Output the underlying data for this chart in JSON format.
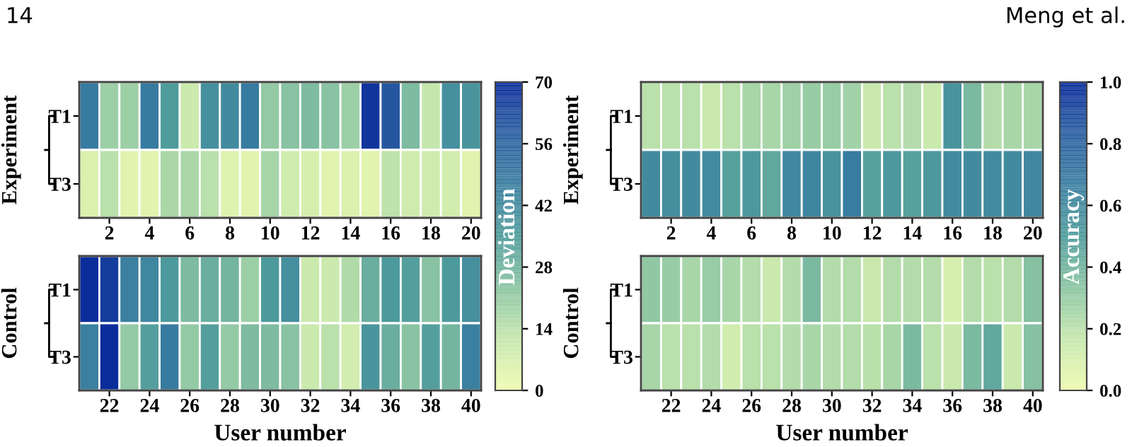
{
  "chart_data": [
    {
      "type": "heatmap",
      "ylabel": "Experiment",
      "annotations": [
        "14",
        "Meng et al."
      ],
      "categories": [
        null,
        "2",
        null,
        "4",
        null,
        "6",
        null,
        "8",
        null,
        "10",
        null,
        "12",
        null,
        "14",
        null,
        "16",
        null,
        "18",
        null,
        "20"
      ],
      "y_categories": [
        "T1",
        "T3"
      ],
      "cells": [
        [
          48,
          20,
          20,
          48,
          35,
          10,
          40,
          42,
          48,
          22,
          24,
          26,
          24,
          20,
          68,
          60,
          26,
          12,
          40,
          38
        ],
        [
          6,
          14,
          4,
          4,
          17,
          17,
          14,
          5,
          4,
          18,
          9,
          7,
          4,
          6,
          4,
          13,
          9,
          9,
          8,
          4
        ]
      ],
      "clim": [
        0,
        70
      ],
      "cticks": [
        42,
        56,
        70
      ],
      "clabel": "Deviation"
    },
    {
      "type": "heatmap",
      "ylabel": "Experiment",
      "categories": [
        null,
        "2",
        null,
        "4",
        null,
        "6",
        null,
        "8",
        null,
        "10",
        null,
        "12",
        null,
        "14",
        null,
        "16",
        null,
        "18",
        null,
        "20"
      ],
      "y_categories": [
        "T1",
        "T3"
      ],
      "cells": [
        [
          0.2,
          0.2,
          0.2,
          0.15,
          0.2,
          0.25,
          0.25,
          0.28,
          0.3,
          0.3,
          0.27,
          0.15,
          0.2,
          0.22,
          0.15,
          0.55,
          0.38,
          0.22,
          0.25,
          0.25
        ],
        [
          0.6,
          0.58,
          0.6,
          0.6,
          0.48,
          0.52,
          0.45,
          0.62,
          0.63,
          0.55,
          0.68,
          0.48,
          0.52,
          0.48,
          0.52,
          0.6,
          0.6,
          0.6,
          0.6,
          0.62
        ]
      ],
      "clim": [
        0,
        1
      ],
      "cticks": [
        0.6,
        0.8,
        {
          "value": 1,
          "label": "1.0"
        }
      ],
      "clabel": "Accuracy"
    },
    {
      "type": "heatmap",
      "ylabel": "Control",
      "xlabel": "User number",
      "categories": [
        null,
        "22",
        null,
        "24",
        null,
        "26",
        null,
        "28",
        null,
        "30",
        null,
        "32",
        null,
        "34",
        null,
        "36",
        null,
        "38",
        null,
        "40"
      ],
      "y_categories": [
        "T1",
        "T3"
      ],
      "cells": [
        [
          70,
          66,
          46,
          44,
          36,
          26,
          30,
          28,
          20,
          36,
          40,
          10,
          10,
          16,
          30,
          36,
          34,
          24,
          36,
          40
        ],
        [
          46,
          70,
          22,
          34,
          48,
          22,
          34,
          22,
          26,
          26,
          24,
          10,
          14,
          8,
          38,
          30,
          24,
          34,
          28,
          46
        ]
      ],
      "clim": [
        0,
        70
      ],
      "cticks": [
        0,
        14,
        28
      ]
    },
    {
      "type": "heatmap",
      "ylabel": "Control",
      "xlabel": "User number",
      "categories": [
        null,
        "22",
        null,
        "24",
        null,
        "26",
        null,
        "28",
        null,
        "30",
        null,
        "32",
        null,
        "34",
        null,
        "36",
        null,
        "38",
        null,
        "40"
      ],
      "y_categories": [
        "T1",
        "T3"
      ],
      "cells": [
        [
          0.32,
          0.3,
          0.25,
          0.3,
          0.25,
          0.22,
          0.15,
          0.22,
          0.38,
          0.22,
          0.22,
          0.15,
          0.22,
          0.22,
          0.22,
          0.1,
          0.22,
          0.2,
          0.22,
          0.35
        ],
        [
          0.25,
          0.2,
          0.2,
          0.22,
          0.12,
          0.2,
          0.2,
          0.22,
          0.25,
          0.22,
          0.22,
          0.2,
          0.25,
          0.38,
          0.2,
          0.15,
          0.38,
          0.45,
          0.15,
          0.35
        ]
      ],
      "clim": [
        0,
        1
      ],
      "cticks": [
        {
          "value": 0,
          "label": "0.0"
        },
        0.2,
        0.4
      ]
    }
  ]
}
